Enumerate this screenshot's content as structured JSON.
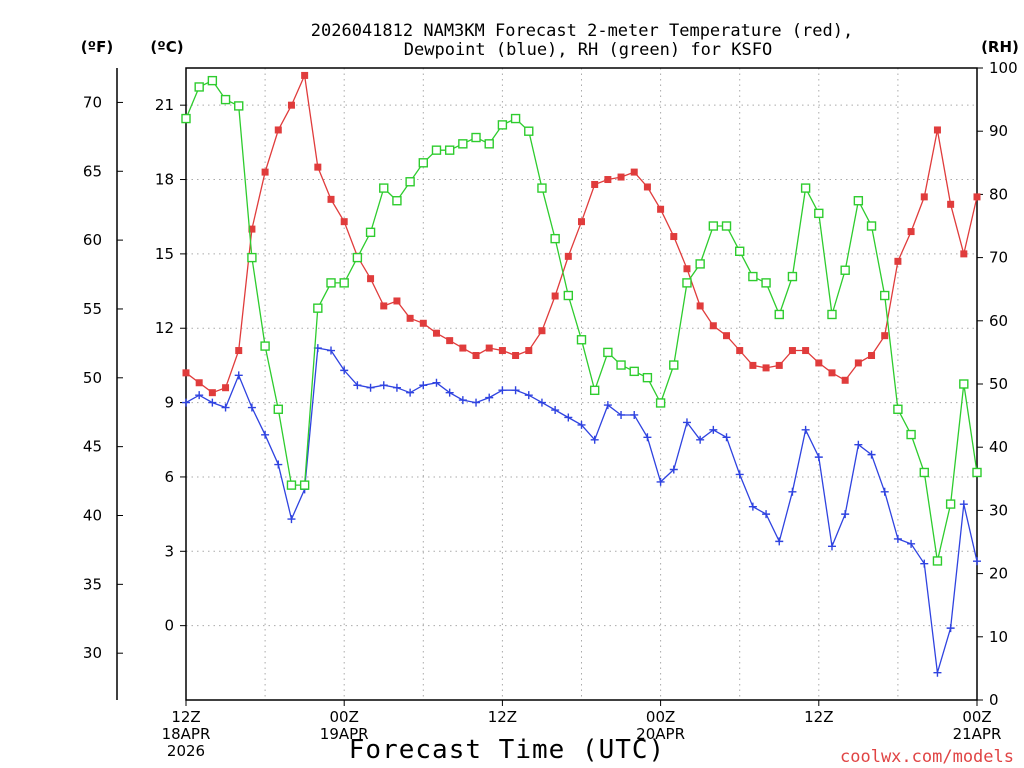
{
  "chart_data": {
    "type": "line",
    "title_line1": "2026041812 NAM3KM Forecast 2-meter Temperature (red),",
    "title_line2": "Dewpoint (blue), RH (green) for KSFO",
    "xlabel": "Forecast Time (UTC)",
    "credit": "coolwx.com/models",
    "axes": {
      "fahrenheit": {
        "unit_label": "(ºF)",
        "ticks": [
          30,
          35,
          40,
          45,
          50,
          55,
          60,
          65,
          70
        ]
      },
      "celsius": {
        "unit_label": "(ºC)",
        "ticks": [
          0,
          3,
          6,
          9,
          12,
          15,
          18,
          21
        ],
        "ylim": [
          -3,
          22.5
        ]
      },
      "rh": {
        "unit_label": "(RH)",
        "ticks": [
          0,
          10,
          20,
          30,
          40,
          50,
          60,
          70,
          80,
          90,
          100
        ],
        "ylim": [
          0,
          100
        ]
      },
      "x": {
        "xlim": [
          0,
          60
        ],
        "ticks": [
          {
            "hour": 0,
            "lines": [
              "12Z",
              "18APR",
              "2026"
            ]
          },
          {
            "hour": 12,
            "lines": [
              "00Z",
              "19APR"
            ]
          },
          {
            "hour": 24,
            "lines": [
              "12Z"
            ]
          },
          {
            "hour": 36,
            "lines": [
              "00Z",
              "20APR"
            ]
          },
          {
            "hour": 48,
            "lines": [
              "12Z"
            ]
          },
          {
            "hour": 60,
            "lines": [
              "00Z",
              "21APR"
            ]
          }
        ]
      }
    },
    "series": [
      {
        "name": "Temperature (°C)",
        "color": "#e03c3c",
        "marker": "filled-square",
        "axis": "celsius",
        "x": [
          0,
          1,
          2,
          3,
          4,
          5,
          6,
          7,
          8,
          9,
          10,
          11,
          12,
          13,
          14,
          15,
          16,
          17,
          18,
          19,
          20,
          21,
          22,
          23,
          24,
          25,
          26,
          27,
          28,
          29,
          30,
          31,
          32,
          33,
          34,
          35,
          36,
          37,
          38,
          39,
          40,
          41,
          42,
          43,
          44,
          45,
          46,
          47,
          48,
          49,
          50,
          51,
          52,
          53,
          54,
          55,
          56,
          57,
          58,
          59,
          60
        ],
        "values": [
          10.2,
          9.8,
          9.4,
          9.6,
          11.1,
          16.0,
          18.3,
          20.0,
          21.0,
          22.2,
          18.5,
          17.2,
          16.3,
          14.9,
          14.0,
          12.9,
          13.1,
          12.4,
          12.2,
          11.8,
          11.5,
          11.2,
          10.9,
          11.2,
          11.1,
          10.9,
          11.1,
          11.9,
          13.3,
          14.9,
          16.3,
          17.8,
          18.0,
          18.1,
          18.3,
          17.7,
          16.8,
          15.7,
          14.4,
          12.9,
          12.1,
          11.7,
          11.1,
          10.5,
          10.4,
          10.5,
          11.1,
          11.1,
          10.6,
          10.2,
          9.9,
          10.6,
          10.9,
          11.7,
          14.7,
          15.9,
          17.3,
          20.0,
          17.0,
          15.0,
          17.3
        ]
      },
      {
        "name": "Dewpoint (°C)",
        "color": "#2f43e0",
        "marker": "plus",
        "axis": "celsius",
        "x": [
          0,
          1,
          2,
          3,
          4,
          5,
          6,
          7,
          8,
          9,
          10,
          11,
          12,
          13,
          14,
          15,
          16,
          17,
          18,
          19,
          20,
          21,
          22,
          23,
          24,
          25,
          26,
          27,
          28,
          29,
          30,
          31,
          32,
          33,
          34,
          35,
          36,
          37,
          38,
          39,
          40,
          41,
          42,
          43,
          44,
          45,
          46,
          47,
          48,
          49,
          50,
          51,
          52,
          53,
          54,
          55,
          56,
          57,
          58,
          59,
          60
        ],
        "values": [
          9.0,
          9.3,
          9.0,
          8.8,
          10.1,
          8.8,
          7.7,
          6.5,
          4.3,
          5.5,
          11.2,
          11.1,
          10.3,
          9.7,
          9.6,
          9.7,
          9.6,
          9.4,
          9.7,
          9.8,
          9.4,
          9.1,
          9.0,
          9.2,
          9.5,
          9.5,
          9.3,
          9.0,
          8.7,
          8.4,
          8.1,
          7.5,
          8.9,
          8.5,
          8.5,
          7.6,
          5.8,
          6.3,
          8.2,
          7.5,
          7.9,
          7.6,
          6.1,
          4.8,
          4.5,
          3.4,
          5.4,
          7.9,
          6.8,
          3.2,
          4.5,
          7.3,
          6.9,
          5.4,
          3.5,
          3.3,
          2.5,
          -1.9,
          -0.1,
          4.9,
          2.6
        ]
      },
      {
        "name": "RH (%)",
        "color": "#2ecc2e",
        "marker": "open-square",
        "axis": "rh",
        "x": [
          0,
          1,
          2,
          3,
          4,
          5,
          6,
          7,
          8,
          9,
          10,
          11,
          12,
          13,
          14,
          15,
          16,
          17,
          18,
          19,
          20,
          21,
          22,
          23,
          24,
          25,
          26,
          27,
          28,
          29,
          30,
          31,
          32,
          33,
          34,
          35,
          36,
          37,
          38,
          39,
          40,
          41,
          42,
          43,
          44,
          45,
          46,
          47,
          48,
          49,
          50,
          51,
          52,
          53,
          54,
          55,
          56,
          57,
          58,
          59,
          60
        ],
        "values": [
          92,
          97,
          98,
          95,
          94,
          70,
          56,
          46,
          34,
          34,
          62,
          66,
          66,
          70,
          74,
          81,
          79,
          82,
          85,
          87,
          87,
          88,
          89,
          88,
          91,
          92,
          90,
          81,
          73,
          64,
          57,
          49,
          55,
          53,
          52,
          51,
          47,
          53,
          66,
          69,
          75,
          75,
          71,
          67,
          66,
          61,
          67,
          81,
          77,
          61,
          68,
          79,
          75,
          64,
          46,
          42,
          36,
          22,
          31,
          50,
          36
        ]
      }
    ]
  }
}
